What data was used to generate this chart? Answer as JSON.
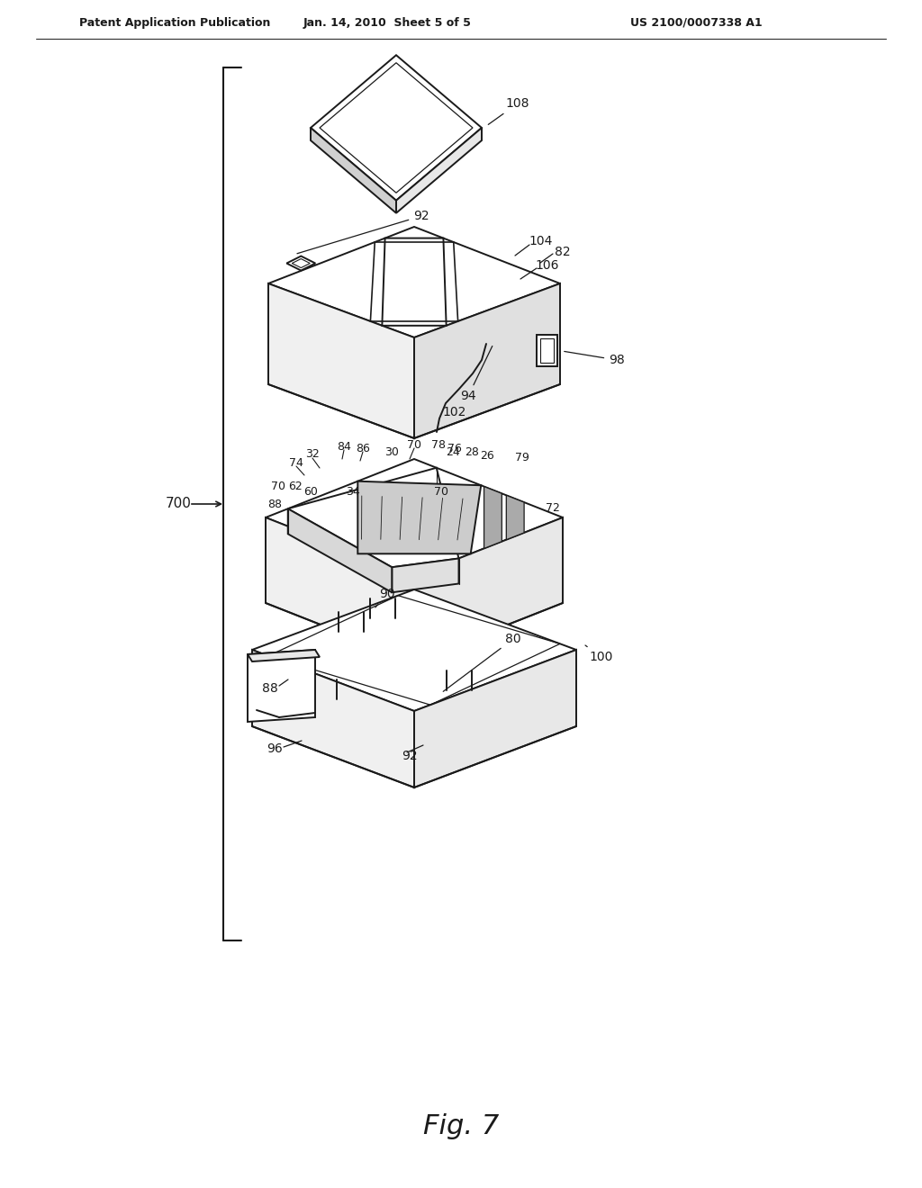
{
  "bg_color": "#ffffff",
  "header_left": "Patent Application Publication",
  "header_mid": "Jan. 14, 2010  Sheet 5 of 5",
  "header_right": "US 2100/0007338 A1",
  "fig_label": "Fig. 7",
  "line_color": "#1a1a1a",
  "text_color": "#1a1a1a",
  "lw": 1.4
}
